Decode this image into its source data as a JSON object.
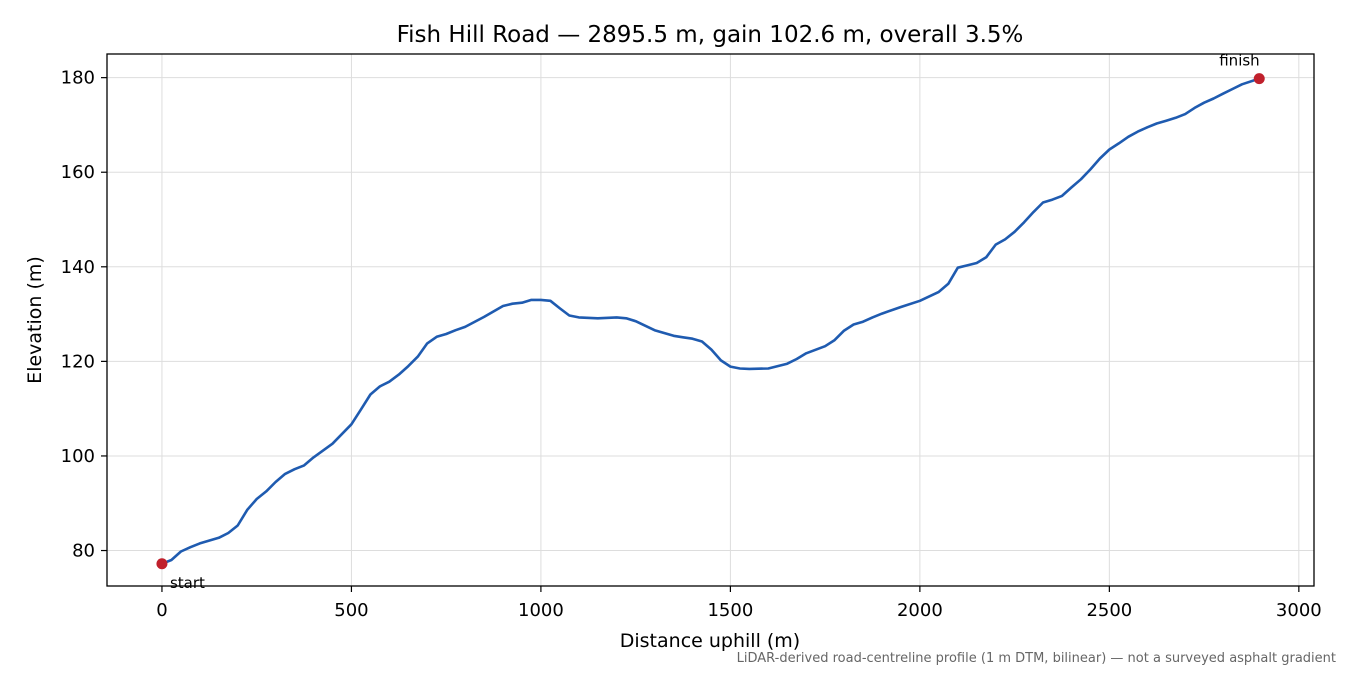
{
  "chart_data": {
    "type": "line",
    "title": "Fish Hill Road — 2895.5 m, gain 102.6 m, overall 3.5%",
    "xlabel": "Distance uphill (m)",
    "ylabel": "Elevation (m)",
    "xlim": [
      -145,
      3040
    ],
    "ylim": [
      72.5,
      185
    ],
    "xticks": [
      0,
      500,
      1000,
      1500,
      2000,
      2500,
      3000
    ],
    "yticks": [
      80,
      100,
      120,
      140,
      160,
      180
    ],
    "xtick_labels": [
      "0",
      "500",
      "1000",
      "1500",
      "2000",
      "2500",
      "3000"
    ],
    "ytick_labels": [
      "80",
      "100",
      "120",
      "140",
      "160",
      "180"
    ],
    "grid": true,
    "line_color": "#1f5bb0",
    "marker_color": "#c0202c",
    "series": [
      {
        "x": [
          0,
          25,
          50,
          75,
          100,
          150,
          175,
          200,
          225,
          250,
          275,
          300,
          325,
          350,
          375,
          400,
          450,
          500,
          525,
          550,
          575,
          600,
          625,
          650,
          675,
          700,
          725,
          750,
          775,
          800,
          850,
          900,
          925,
          950,
          975,
          1000,
          1025,
          1050,
          1075,
          1100,
          1150,
          1200,
          1225,
          1250,
          1300,
          1350,
          1375,
          1400,
          1425,
          1450,
          1475,
          1500,
          1525,
          1550,
          1600,
          1650,
          1675,
          1700,
          1750,
          1775,
          1800,
          1825,
          1850,
          1875,
          1900,
          1950,
          2000,
          2050,
          2075,
          2100,
          2125,
          2150,
          2175,
          2200,
          2225,
          2250,
          2275,
          2300,
          2325,
          2350,
          2375,
          2400,
          2425,
          2450,
          2475,
          2500,
          2525,
          2550,
          2575,
          2600,
          2625,
          2650,
          2675,
          2700,
          2725,
          2750,
          2775,
          2800,
          2825,
          2850,
          2895.5
        ],
        "y": [
          77.2,
          78.0,
          79.8,
          80.7,
          81.5,
          82.7,
          83.7,
          85.3,
          88.6,
          90.9,
          92.5,
          94.5,
          96.2,
          97.2,
          98.0,
          99.7,
          102.6,
          106.7,
          109.8,
          113.0,
          114.7,
          115.7,
          117.2,
          119.0,
          121.0,
          123.8,
          125.2,
          125.8,
          126.6,
          127.3,
          129.4,
          131.7,
          132.2,
          132.4,
          133.0,
          133.0,
          132.8,
          131.2,
          129.7,
          129.3,
          129.1,
          129.3,
          129.1,
          128.5,
          126.6,
          125.4,
          125.1,
          124.8,
          124.2,
          122.5,
          120.2,
          118.9,
          118.5,
          118.4,
          118.5,
          119.5,
          120.5,
          121.7,
          123.2,
          124.5,
          126.5,
          127.8,
          128.4,
          129.3,
          130.1,
          131.5,
          132.8,
          134.7,
          136.4,
          139.8,
          140.3,
          140.8,
          142.0,
          144.7,
          145.8,
          147.4,
          149.4,
          151.6,
          153.6,
          154.2,
          155.0,
          156.8,
          158.5,
          160.6,
          162.9,
          164.8,
          166.1,
          167.5,
          168.6,
          169.5,
          170.3,
          170.9,
          171.5,
          172.3,
          173.6,
          174.7,
          175.6,
          176.6,
          177.6,
          178.6,
          179.8
        ]
      }
    ],
    "annotations": [
      {
        "text": "start",
        "x": 0,
        "y": 77.2
      },
      {
        "text": "finish",
        "x": 2895.5,
        "y": 179.8
      }
    ],
    "footnote": "LiDAR-derived road-centreline profile (1 m DTM, bilinear) — not a surveyed asphalt gradient"
  }
}
